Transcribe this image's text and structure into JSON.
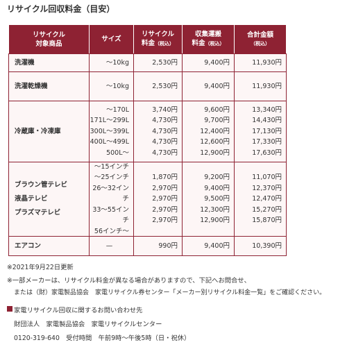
{
  "title": "リサイクル回収料金（目安）",
  "table": {
    "header": [
      {
        "lines": [
          "リサイクル",
          "対象商品"
        ]
      },
      {
        "lines": [
          "サイズ"
        ]
      },
      {
        "lines": [
          "リサイクル",
          "料金"
        ],
        "note": "（税込）"
      },
      {
        "lines": [
          "収集運搬",
          "料金"
        ],
        "note": "（税込）"
      },
      {
        "lines": [
          "合計金額"
        ],
        "note": "（税込）"
      }
    ],
    "rows": [
      [
        [
          "洗濯機"
        ],
        [
          "～10kg"
        ],
        [
          "2,530円"
        ],
        [
          "9,400円"
        ],
        [
          "11,930円"
        ]
      ],
      [
        [
          "洗濯乾燥機"
        ],
        [
          "～10kg"
        ],
        [
          "2,530円"
        ],
        [
          "9,400円"
        ],
        [
          "11,930円"
        ]
      ],
      [
        [
          "冷蔵庫・冷凍庫"
        ],
        [
          "～170L",
          "171L～299L",
          "300L～399L",
          "400L～499L",
          "500L～"
        ],
        [
          "3,740円",
          "4,730円",
          "4,730円",
          "4,730円",
          "4,730円"
        ],
        [
          "9,600円",
          "9,700円",
          "12,400円",
          "12,600円",
          "12,900円"
        ],
        [
          "13,340円",
          "14,430円",
          "17,130円",
          "17,330円",
          "17,630円"
        ]
      ],
      [
        [
          "ブラウン管テレビ",
          "液晶テレビ",
          "プラズマテレビ"
        ],
        [
          "～15インチ",
          "～25インチ",
          "26～32インチ",
          "33～55インチ",
          "56インチ～"
        ],
        [
          "1,870円",
          "2,970円",
          "2,970円",
          "2,970円",
          "2,970円"
        ],
        [
          "9,200円",
          "9,400円",
          "9,500円",
          "12,300円",
          "12,900円"
        ],
        [
          "11,070円",
          "12,370円",
          "12,470円",
          "15,270円",
          "15,870円"
        ]
      ],
      [
        [
          "エアコン"
        ],
        [
          "—"
        ],
        [
          "990円"
        ],
        [
          "9,400円"
        ],
        [
          "10,390円"
        ]
      ]
    ]
  },
  "notes": {
    "updated": "※2021年9月22日更新",
    "caution": [
      "※一部メーカーは、リサイクル料金が異なる場合がありますので、下記へお問合せ、",
      "または（財）家電製品協会　家電リサイクル券センター「メーカー別リサイクル料金一覧」をご確認ください。"
    ],
    "contact_heading": "家電リサイクル回収に関するお問い合わせ先",
    "contact": [
      "財団法人　家電製品協会　家電リサイクルセンター",
      "0120-319-640　受付時間　午前9時～午後5時（日・祝休）"
    ]
  }
}
